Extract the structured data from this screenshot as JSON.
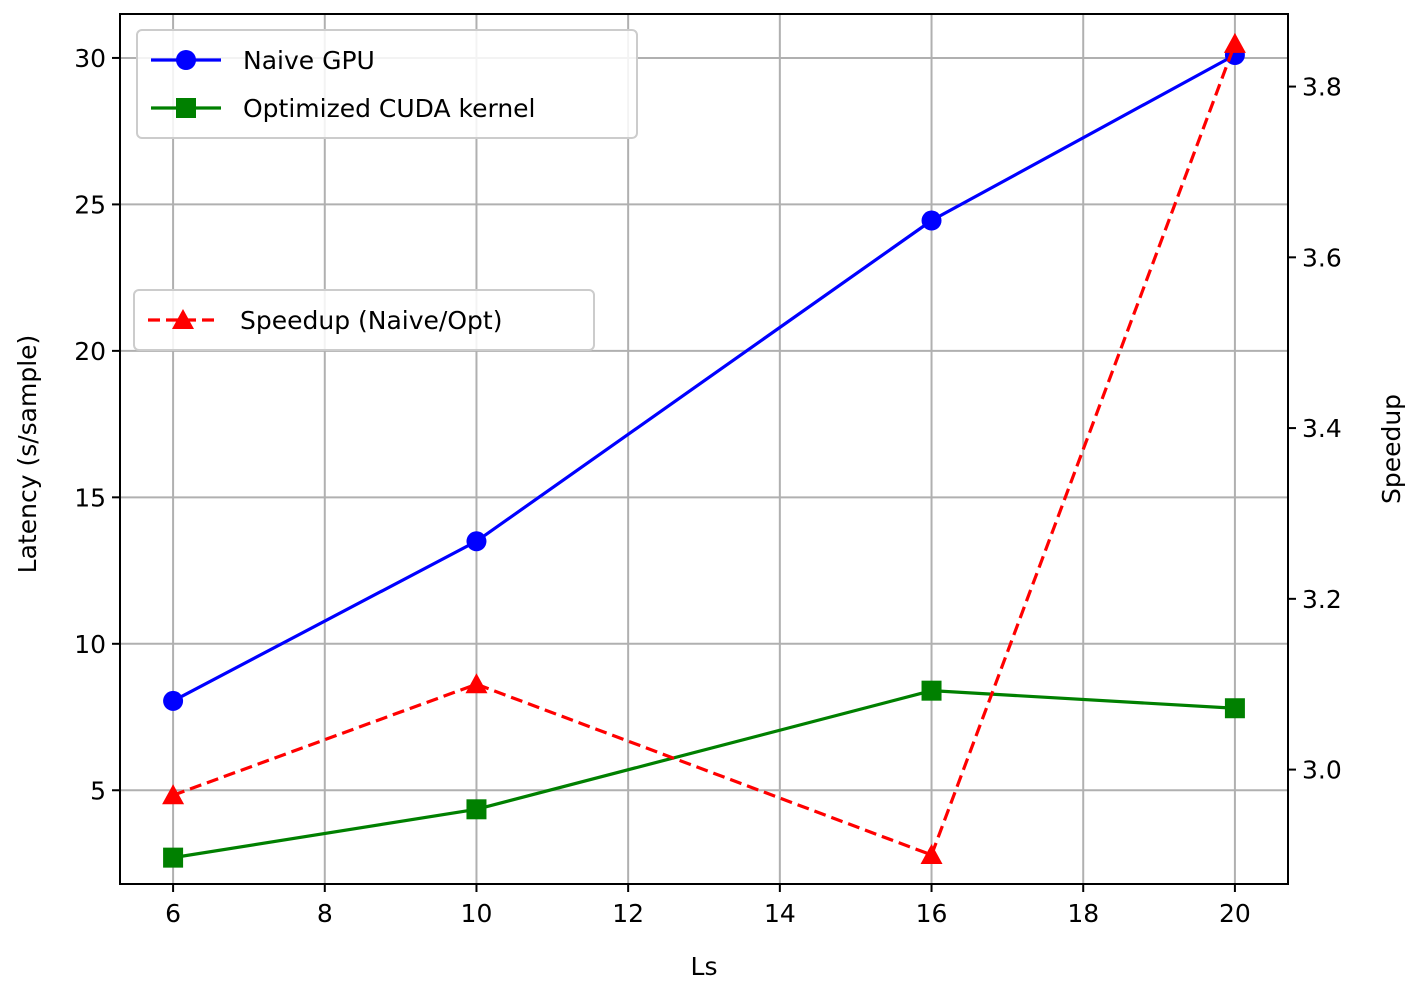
{
  "chart_data": {
    "type": "line",
    "title": "",
    "xlabel": "Ls",
    "ylabel_left": "Latency (s/sample)",
    "ylabel_right": "Speedup",
    "x": [
      6,
      10,
      16,
      20
    ],
    "xlim": [
      5.3,
      20.7
    ],
    "xticks": [
      6,
      8,
      10,
      12,
      14,
      16,
      18,
      20
    ],
    "ylim_left": [
      1.8,
      31.5
    ],
    "yticks_left": [
      5,
      10,
      15,
      20,
      25,
      30
    ],
    "ylim_right": [
      2.866,
      3.885
    ],
    "yticks_right": [
      "3.0",
      "3.2",
      "3.4",
      "3.6",
      "3.8"
    ],
    "grid": true,
    "series": [
      {
        "name": "Naive GPU",
        "axis": "left",
        "values": [
          8.05,
          13.5,
          24.45,
          30.1
        ],
        "color": "#0000ff",
        "marker": "circle",
        "linestyle": "solid"
      },
      {
        "name": "Optimized CUDA kernel",
        "axis": "left",
        "values": [
          2.7,
          4.35,
          8.4,
          7.8
        ],
        "color": "#008000",
        "marker": "square",
        "linestyle": "solid"
      },
      {
        "name": "Speedup (Naive/Opt)",
        "axis": "right",
        "values": [
          2.97,
          3.1,
          2.9,
          3.85
        ],
        "color": "#ff0000",
        "marker": "triangle",
        "linestyle": "dashed"
      }
    ],
    "legends": [
      {
        "placement": "top-left",
        "entries": [
          "Naive GPU",
          "Optimized CUDA kernel"
        ]
      },
      {
        "placement": "center-left",
        "entries": [
          "Speedup (Naive/Opt)"
        ]
      }
    ]
  }
}
